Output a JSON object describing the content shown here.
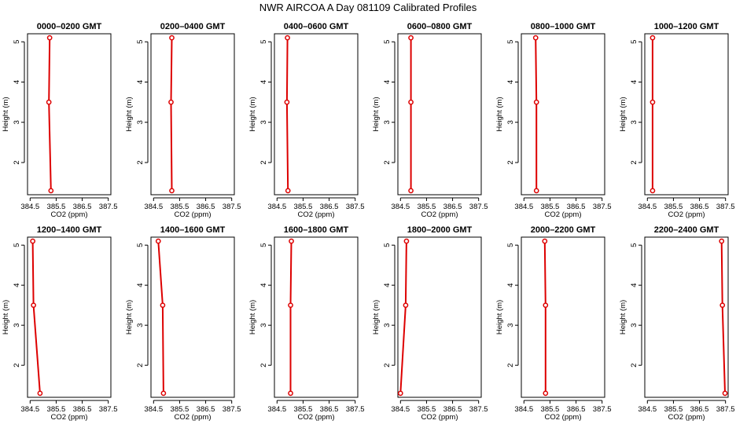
{
  "page_title": "NWR AIRCOA A  Day 081109  Calibrated Profiles",
  "colors": {
    "series": "#dd0000",
    "axis": "#000000",
    "background": "#ffffff"
  },
  "chart_data": [
    {
      "type": "line",
      "title": "0000–0200 GMT",
      "xlabel": "CO2 (ppm)",
      "ylabel": "Height (m)",
      "xlim": [
        384.4,
        387.6
      ],
      "ylim": [
        1.2,
        5.2
      ],
      "xticks": [
        384.5,
        385.5,
        386.5,
        387.5
      ],
      "yticks": [
        2,
        3,
        4,
        5
      ],
      "points": [
        {
          "x": 385.25,
          "y": 5.1
        },
        {
          "x": 385.22,
          "y": 3.5
        },
        {
          "x": 385.3,
          "y": 1.3
        }
      ]
    },
    {
      "type": "line",
      "title": "0200–0400 GMT",
      "xlabel": "CO2 (ppm)",
      "ylabel": "Height (m)",
      "xlim": [
        384.4,
        387.6
      ],
      "ylim": [
        1.2,
        5.2
      ],
      "xticks": [
        384.5,
        385.5,
        386.5,
        387.5
      ],
      "yticks": [
        2,
        3,
        4,
        5
      ],
      "points": [
        {
          "x": 385.2,
          "y": 5.1
        },
        {
          "x": 385.17,
          "y": 3.5
        },
        {
          "x": 385.2,
          "y": 1.3
        }
      ]
    },
    {
      "type": "line",
      "title": "0400–0600 GMT",
      "xlabel": "CO2 (ppm)",
      "ylabel": "Height (m)",
      "xlim": [
        384.4,
        387.6
      ],
      "ylim": [
        1.2,
        5.2
      ],
      "xticks": [
        384.5,
        385.5,
        386.5,
        387.5
      ],
      "yticks": [
        2,
        3,
        4,
        5
      ],
      "points": [
        {
          "x": 384.9,
          "y": 5.1
        },
        {
          "x": 384.88,
          "y": 3.5
        },
        {
          "x": 384.92,
          "y": 1.3
        }
      ]
    },
    {
      "type": "line",
      "title": "0600–0800 GMT",
      "xlabel": "CO2 (ppm)",
      "ylabel": "Height (m)",
      "xlim": [
        384.4,
        387.6
      ],
      "ylim": [
        1.2,
        5.2
      ],
      "xticks": [
        384.5,
        385.5,
        386.5,
        387.5
      ],
      "yticks": [
        2,
        3,
        4,
        5
      ],
      "points": [
        {
          "x": 384.9,
          "y": 5.1
        },
        {
          "x": 384.9,
          "y": 3.5
        },
        {
          "x": 384.9,
          "y": 1.3
        }
      ]
    },
    {
      "type": "line",
      "title": "0800–1000 GMT",
      "xlabel": "CO2 (ppm)",
      "ylabel": "Height (m)",
      "xlim": [
        384.4,
        387.6
      ],
      "ylim": [
        1.2,
        5.2
      ],
      "xticks": [
        384.5,
        385.5,
        386.5,
        387.5
      ],
      "yticks": [
        2,
        3,
        4,
        5
      ],
      "points": [
        {
          "x": 384.95,
          "y": 5.1
        },
        {
          "x": 384.98,
          "y": 3.5
        },
        {
          "x": 384.98,
          "y": 1.3
        }
      ]
    },
    {
      "type": "line",
      "title": "1000–1200 GMT",
      "xlabel": "CO2 (ppm)",
      "ylabel": "Height (m)",
      "xlim": [
        384.4,
        387.6
      ],
      "ylim": [
        1.2,
        5.2
      ],
      "xticks": [
        384.5,
        385.5,
        386.5,
        387.5
      ],
      "yticks": [
        2,
        3,
        4,
        5
      ],
      "points": [
        {
          "x": 384.7,
          "y": 5.1
        },
        {
          "x": 384.7,
          "y": 3.5
        },
        {
          "x": 384.7,
          "y": 1.3
        }
      ]
    },
    {
      "type": "line",
      "title": "1200–1400 GMT",
      "xlabel": "CO2 (ppm)",
      "ylabel": "Height (m)",
      "xlim": [
        384.4,
        387.6
      ],
      "ylim": [
        1.2,
        5.2
      ],
      "xticks": [
        384.5,
        385.5,
        386.5,
        387.5
      ],
      "yticks": [
        2,
        3,
        4,
        5
      ],
      "points": [
        {
          "x": 384.6,
          "y": 5.1
        },
        {
          "x": 384.63,
          "y": 3.5
        },
        {
          "x": 384.88,
          "y": 1.3
        }
      ]
    },
    {
      "type": "line",
      "title": "1400–1600 GMT",
      "xlabel": "CO2 (ppm)",
      "ylabel": "Height (m)",
      "xlim": [
        384.4,
        387.6
      ],
      "ylim": [
        1.2,
        5.2
      ],
      "xticks": [
        384.5,
        385.5,
        386.5,
        387.5
      ],
      "yticks": [
        2,
        3,
        4,
        5
      ],
      "points": [
        {
          "x": 384.68,
          "y": 5.1
        },
        {
          "x": 384.85,
          "y": 3.5
        },
        {
          "x": 384.88,
          "y": 1.3
        }
      ]
    },
    {
      "type": "line",
      "title": "1600–1800 GMT",
      "xlabel": "CO2 (ppm)",
      "ylabel": "Height (m)",
      "xlim": [
        384.4,
        387.6
      ],
      "ylim": [
        1.2,
        5.2
      ],
      "xticks": [
        384.5,
        385.5,
        386.5,
        387.5
      ],
      "yticks": [
        2,
        3,
        4,
        5
      ],
      "points": [
        {
          "x": 385.05,
          "y": 5.1
        },
        {
          "x": 385.02,
          "y": 3.5
        },
        {
          "x": 385.02,
          "y": 1.3
        }
      ]
    },
    {
      "type": "line",
      "title": "1800–2000 GMT",
      "xlabel": "CO2 (ppm)",
      "ylabel": "Height (m)",
      "xlim": [
        384.4,
        387.6
      ],
      "ylim": [
        1.2,
        5.2
      ],
      "xticks": [
        384.5,
        385.5,
        386.5,
        387.5
      ],
      "yticks": [
        2,
        3,
        4,
        5
      ],
      "points": [
        {
          "x": 384.73,
          "y": 5.1
        },
        {
          "x": 384.7,
          "y": 3.5
        },
        {
          "x": 384.5,
          "y": 1.3
        }
      ]
    },
    {
      "type": "line",
      "title": "2000–2200 GMT",
      "xlabel": "CO2 (ppm)",
      "ylabel": "Height (m)",
      "xlim": [
        384.4,
        387.6
      ],
      "ylim": [
        1.2,
        5.2
      ],
      "xticks": [
        384.5,
        385.5,
        386.5,
        387.5
      ],
      "yticks": [
        2,
        3,
        4,
        5
      ],
      "points": [
        {
          "x": 385.3,
          "y": 5.1
        },
        {
          "x": 385.33,
          "y": 3.5
        },
        {
          "x": 385.33,
          "y": 1.3
        }
      ]
    },
    {
      "type": "line",
      "title": "2200–2400 GMT",
      "xlabel": "CO2 (ppm)",
      "ylabel": "Height (m)",
      "xlim": [
        384.4,
        387.6
      ],
      "ylim": [
        1.2,
        5.2
      ],
      "xticks": [
        384.5,
        385.5,
        386.5,
        387.5
      ],
      "yticks": [
        2,
        3,
        4,
        5
      ],
      "points": [
        {
          "x": 387.35,
          "y": 5.1
        },
        {
          "x": 387.38,
          "y": 3.5
        },
        {
          "x": 387.48,
          "y": 1.3
        }
      ]
    }
  ]
}
